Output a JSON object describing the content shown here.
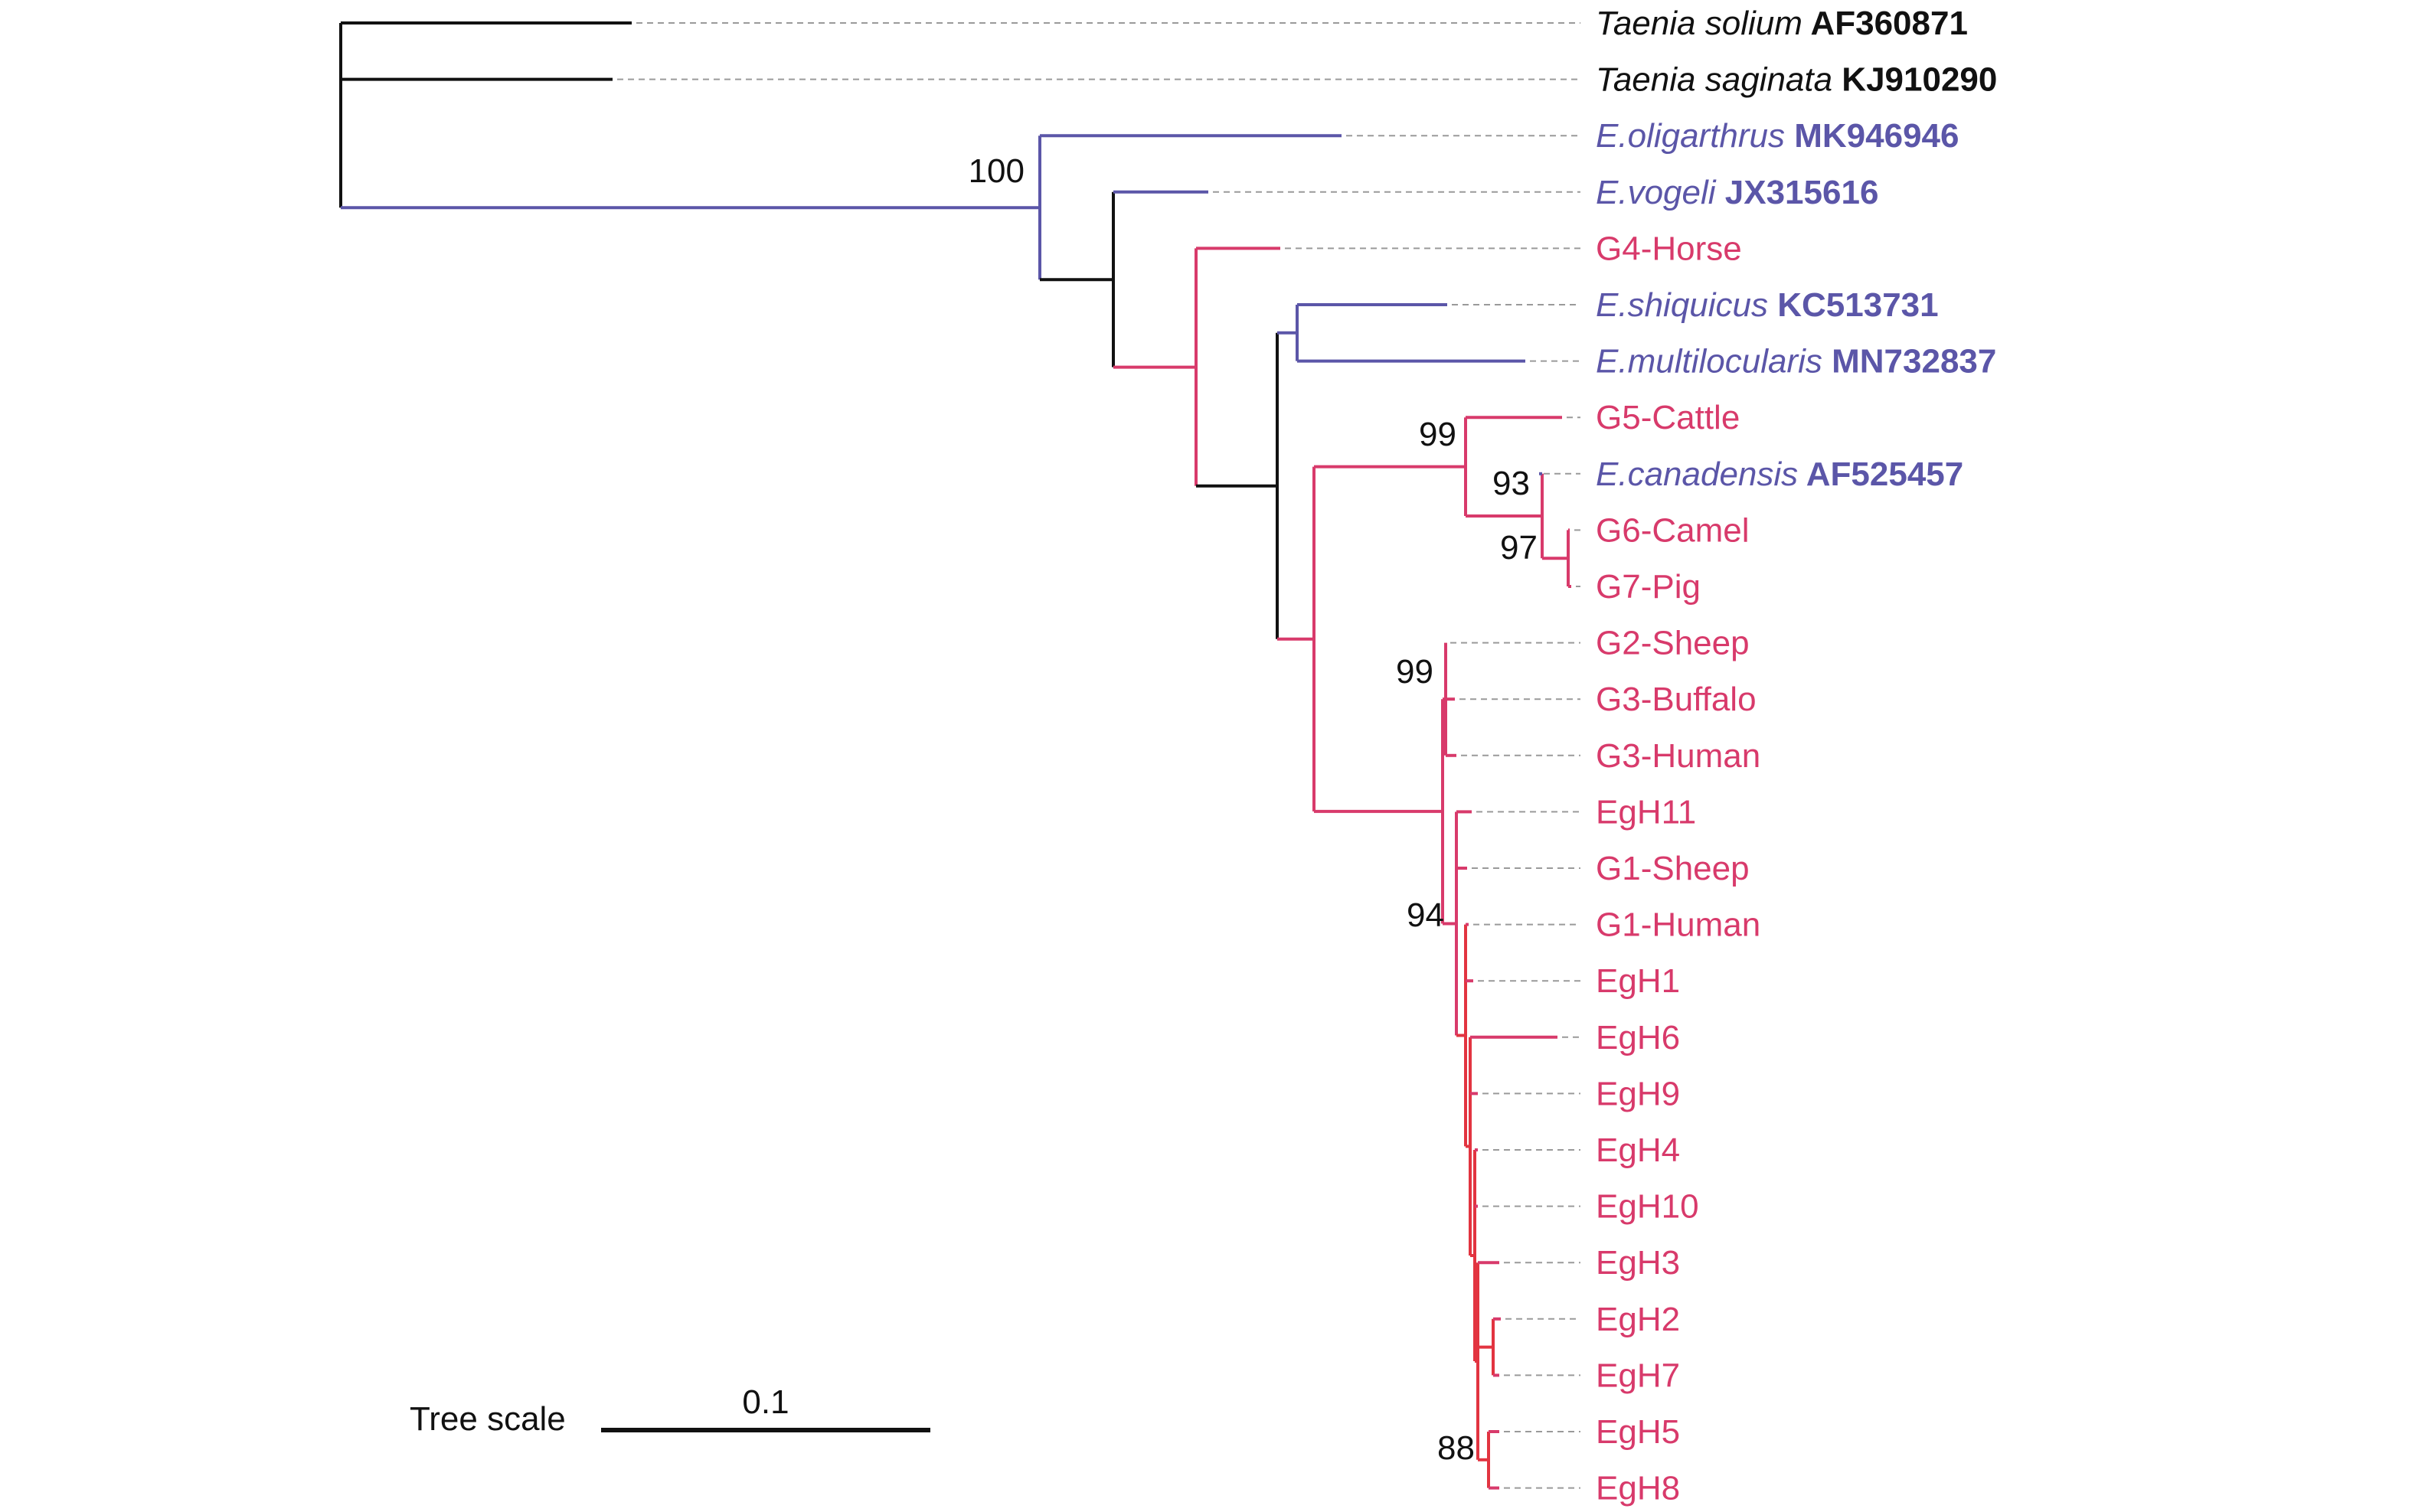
{
  "colors": {
    "outgroup": "#111111",
    "echinococcus": "#5b56a8",
    "genotype": "#d83a6b",
    "haplotype": "#e23440",
    "leader": "#9a9a9a"
  },
  "leaves": [
    {
      "id": "t_solium",
      "parts": [
        {
          "text": "Taenia solium",
          "style": "italic"
        },
        {
          "text": " AF360871",
          "style": "bold"
        }
      ],
      "color": "outgroup"
    },
    {
      "id": "t_saginata",
      "parts": [
        {
          "text": "Taenia saginata",
          "style": "italic"
        },
        {
          "text": " KJ910290",
          "style": "bold"
        }
      ],
      "color": "outgroup"
    },
    {
      "id": "e_olig",
      "parts": [
        {
          "text": "E.oligarthrus",
          "style": "italic"
        },
        {
          "text": " MK946946",
          "style": "bold"
        }
      ],
      "color": "echinococcus"
    },
    {
      "id": "e_vog",
      "parts": [
        {
          "text": "E.vogeli",
          "style": "italic"
        },
        {
          "text": " JX315616",
          "style": "bold"
        }
      ],
      "color": "echinococcus"
    },
    {
      "id": "g4",
      "parts": [
        {
          "text": "G4-Horse",
          "style": "normal"
        }
      ],
      "color": "genotype"
    },
    {
      "id": "e_shiq",
      "parts": [
        {
          "text": "E.shiquicus",
          "style": "italic"
        },
        {
          "text": " KC513731",
          "style": "bold"
        }
      ],
      "color": "echinococcus"
    },
    {
      "id": "e_mult",
      "parts": [
        {
          "text": "E.multilocularis",
          "style": "italic"
        },
        {
          "text": " MN732837",
          "style": "bold"
        }
      ],
      "color": "echinococcus"
    },
    {
      "id": "g5",
      "parts": [
        {
          "text": "G5-Cattle",
          "style": "normal"
        }
      ],
      "color": "genotype"
    },
    {
      "id": "e_can",
      "parts": [
        {
          "text": "E.canadensis",
          "style": "italic"
        },
        {
          "text": " AF525457",
          "style": "bold"
        }
      ],
      "color": "echinococcus"
    },
    {
      "id": "g6",
      "parts": [
        {
          "text": "G6-Camel",
          "style": "normal"
        }
      ],
      "color": "genotype"
    },
    {
      "id": "g7",
      "parts": [
        {
          "text": "G7-Pig",
          "style": "normal"
        }
      ],
      "color": "genotype"
    },
    {
      "id": "g2",
      "parts": [
        {
          "text": "G2-Sheep",
          "style": "normal"
        }
      ],
      "color": "genotype"
    },
    {
      "id": "g3b",
      "parts": [
        {
          "text": "G3-Buffalo",
          "style": "normal"
        }
      ],
      "color": "genotype"
    },
    {
      "id": "g3h",
      "parts": [
        {
          "text": "G3-Human",
          "style": "normal"
        }
      ],
      "color": "genotype"
    },
    {
      "id": "egh11",
      "parts": [
        {
          "text": "EgH11",
          "style": "normal"
        }
      ],
      "color": "genotype"
    },
    {
      "id": "g1s",
      "parts": [
        {
          "text": "G1-Sheep",
          "style": "normal"
        }
      ],
      "color": "genotype"
    },
    {
      "id": "g1h",
      "parts": [
        {
          "text": "G1-Human",
          "style": "normal"
        }
      ],
      "color": "genotype"
    },
    {
      "id": "egh1",
      "parts": [
        {
          "text": "EgH1",
          "style": "normal"
        }
      ],
      "color": "genotype"
    },
    {
      "id": "egh6",
      "parts": [
        {
          "text": "EgH6",
          "style": "normal"
        }
      ],
      "color": "genotype"
    },
    {
      "id": "egh9",
      "parts": [
        {
          "text": "EgH9",
          "style": "normal"
        }
      ],
      "color": "genotype"
    },
    {
      "id": "egh4",
      "parts": [
        {
          "text": "EgH4",
          "style": "normal"
        }
      ],
      "color": "genotype"
    },
    {
      "id": "egh10",
      "parts": [
        {
          "text": "EgH10",
          "style": "normal"
        }
      ],
      "color": "genotype"
    },
    {
      "id": "egh3",
      "parts": [
        {
          "text": "EgH3",
          "style": "normal"
        }
      ],
      "color": "genotype"
    },
    {
      "id": "egh2",
      "parts": [
        {
          "text": "EgH2",
          "style": "normal"
        }
      ],
      "color": "genotype"
    },
    {
      "id": "egh7",
      "parts": [
        {
          "text": "EgH7",
          "style": "normal"
        }
      ],
      "color": "genotype"
    },
    {
      "id": "egh5",
      "parts": [
        {
          "text": "EgH5",
          "style": "normal"
        }
      ],
      "color": "genotype"
    },
    {
      "id": "egh8",
      "parts": [
        {
          "text": "EgH8",
          "style": "normal"
        }
      ],
      "color": "genotype"
    }
  ],
  "support_values": [
    "100",
    "99",
    "93",
    "97",
    "99",
    "94",
    "88"
  ],
  "scale": {
    "label": "Tree scale",
    "value": "0.1"
  }
}
